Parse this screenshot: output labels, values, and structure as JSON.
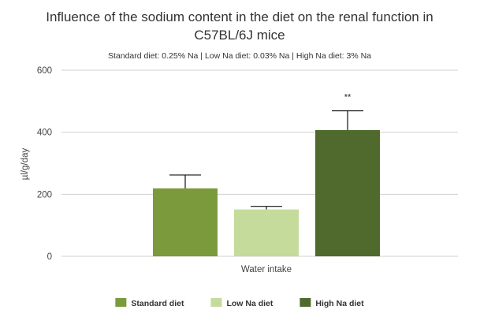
{
  "chart_data": {
    "type": "bar",
    "title_line1": "Influence of the sodium content in the diet on the renal function in",
    "title_line2": "C57BL/6J mice",
    "subtitle": "Standard diet: 0.25% Na | Low Na diet: 0.03% Na | High Na diet: 3% Na",
    "xlabel": "Water intake",
    "ylabel": "µl/g/day",
    "ylim": [
      0,
      600
    ],
    "yticks": [
      "0",
      "200",
      "400",
      "600"
    ],
    "grid": true,
    "legend_position": "bottom",
    "categories": [
      "Water intake"
    ],
    "series": [
      {
        "name": "Standard diet",
        "values": [
          219
        ],
        "error": [
          43
        ],
        "color": "#7a9a3c",
        "annotation": ""
      },
      {
        "name": "Low Na diet",
        "values": [
          151
        ],
        "error": [
          10
        ],
        "color": "#c5db9c",
        "annotation": ""
      },
      {
        "name": "High Na diet",
        "values": [
          407
        ],
        "error": [
          62
        ],
        "color": "#4f6a2c",
        "annotation": "**"
      }
    ]
  }
}
